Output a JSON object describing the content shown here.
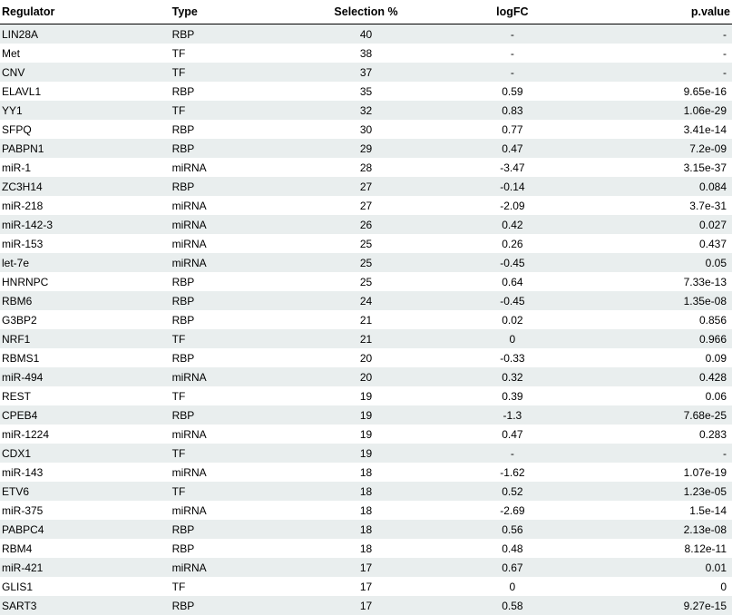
{
  "table": {
    "columns": [
      "Regulator",
      "Type",
      "Selection %",
      "logFC",
      "p.value"
    ],
    "rows": [
      {
        "regulator": "LIN28A",
        "type": "RBP",
        "selection": "40",
        "logfc": "-",
        "pvalue": "-"
      },
      {
        "regulator": "Met",
        "type": "TF",
        "selection": "38",
        "logfc": "-",
        "pvalue": "-"
      },
      {
        "regulator": "CNV",
        "type": "TF",
        "selection": "37",
        "logfc": "-",
        "pvalue": "-"
      },
      {
        "regulator": "ELAVL1",
        "type": "RBP",
        "selection": "35",
        "logfc": "0.59",
        "pvalue": "9.65e-16"
      },
      {
        "regulator": "YY1",
        "type": "TF",
        "selection": "32",
        "logfc": "0.83",
        "pvalue": "1.06e-29"
      },
      {
        "regulator": "SFPQ",
        "type": "RBP",
        "selection": "30",
        "logfc": "0.77",
        "pvalue": "3.41e-14"
      },
      {
        "regulator": "PABPN1",
        "type": "RBP",
        "selection": "29",
        "logfc": "0.47",
        "pvalue": "7.2e-09"
      },
      {
        "regulator": "miR-1",
        "type": "miRNA",
        "selection": "28",
        "logfc": "-3.47",
        "pvalue": "3.15e-37"
      },
      {
        "regulator": "ZC3H14",
        "type": "RBP",
        "selection": "27",
        "logfc": "-0.14",
        "pvalue": "0.084"
      },
      {
        "regulator": "miR-218",
        "type": "miRNA",
        "selection": "27",
        "logfc": "-2.09",
        "pvalue": "3.7e-31"
      },
      {
        "regulator": "miR-142-3",
        "type": "miRNA",
        "selection": "26",
        "logfc": "0.42",
        "pvalue": "0.027"
      },
      {
        "regulator": "miR-153",
        "type": "miRNA",
        "selection": "25",
        "logfc": "0.26",
        "pvalue": "0.437"
      },
      {
        "regulator": "let-7e",
        "type": "miRNA",
        "selection": "25",
        "logfc": "-0.45",
        "pvalue": "0.05"
      },
      {
        "regulator": "HNRNPC",
        "type": "RBP",
        "selection": "25",
        "logfc": "0.64",
        "pvalue": "7.33e-13"
      },
      {
        "regulator": "RBM6",
        "type": "RBP",
        "selection": "24",
        "logfc": "-0.45",
        "pvalue": "1.35e-08"
      },
      {
        "regulator": "G3BP2",
        "type": "RBP",
        "selection": "21",
        "logfc": "0.02",
        "pvalue": "0.856"
      },
      {
        "regulator": "NRF1",
        "type": "TF",
        "selection": "21",
        "logfc": "0",
        "pvalue": "0.966"
      },
      {
        "regulator": "RBMS1",
        "type": "RBP",
        "selection": "20",
        "logfc": "-0.33",
        "pvalue": "0.09"
      },
      {
        "regulator": "miR-494",
        "type": "miRNA",
        "selection": "20",
        "logfc": "0.32",
        "pvalue": "0.428"
      },
      {
        "regulator": "REST",
        "type": "TF",
        "selection": "19",
        "logfc": "0.39",
        "pvalue": "0.06"
      },
      {
        "regulator": "CPEB4",
        "type": "RBP",
        "selection": "19",
        "logfc": "-1.3",
        "pvalue": "7.68e-25"
      },
      {
        "regulator": "miR-1224",
        "type": "miRNA",
        "selection": "19",
        "logfc": "0.47",
        "pvalue": "0.283"
      },
      {
        "regulator": "CDX1",
        "type": "TF",
        "selection": "19",
        "logfc": "-",
        "pvalue": "-"
      },
      {
        "regulator": "miR-143",
        "type": "miRNA",
        "selection": "18",
        "logfc": "-1.62",
        "pvalue": "1.07e-19"
      },
      {
        "regulator": "ETV6",
        "type": "TF",
        "selection": "18",
        "logfc": "0.52",
        "pvalue": "1.23e-05"
      },
      {
        "regulator": "miR-375",
        "type": "miRNA",
        "selection": "18",
        "logfc": "-2.69",
        "pvalue": "1.5e-14"
      },
      {
        "regulator": "PABPC4",
        "type": "RBP",
        "selection": "18",
        "logfc": "0.56",
        "pvalue": "2.13e-08"
      },
      {
        "regulator": "RBM4",
        "type": "RBP",
        "selection": "18",
        "logfc": "0.48",
        "pvalue": "8.12e-11"
      },
      {
        "regulator": "miR-421",
        "type": "miRNA",
        "selection": "17",
        "logfc": "0.67",
        "pvalue": "0.01"
      },
      {
        "regulator": "GLIS1",
        "type": "TF",
        "selection": "17",
        "logfc": "0",
        "pvalue": "0"
      },
      {
        "regulator": "SART3",
        "type": "RBP",
        "selection": "17",
        "logfc": "0.58",
        "pvalue": "9.27e-15"
      }
    ],
    "styling": {
      "header_bg": "#ffffff",
      "row_alt_bg": "#e9eeee",
      "row_bg": "#ffffff",
      "text_color": "#000000",
      "header_border": "#000000",
      "font_family": "Arial",
      "header_fontsize": 12.5,
      "cell_fontsize": 12,
      "col_widths_pct": [
        23,
        17,
        20,
        20,
        20
      ],
      "col_align": [
        "left",
        "left",
        "center",
        "center",
        "right"
      ]
    }
  }
}
